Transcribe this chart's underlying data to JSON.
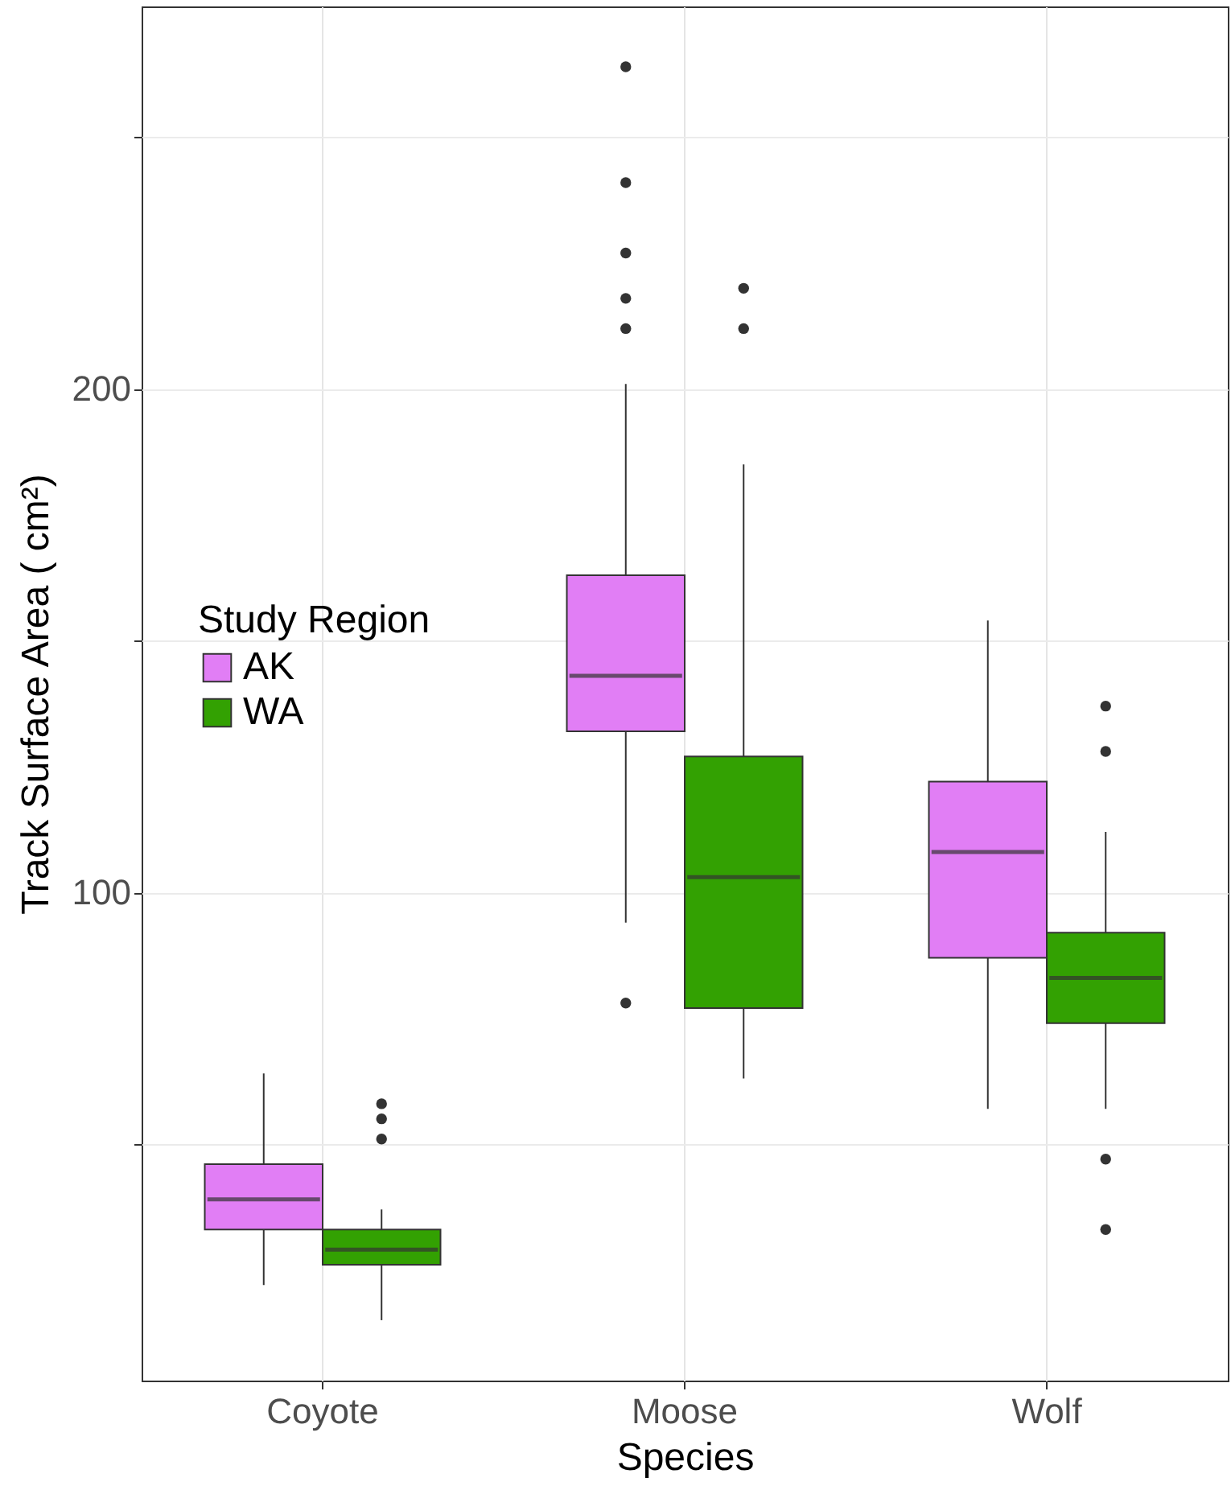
{
  "chart_data": {
    "type": "box",
    "xlabel": "Species",
    "ylabel": "Track Surface Area ( cm²)",
    "legend_title": "Study Region",
    "legend": "left",
    "grid": true,
    "categories": [
      "Coyote",
      "Moose",
      "Wolf"
    ],
    "ylim": [
      3,
      276
    ],
    "yticks": [
      {
        "value": 50,
        "label": null
      },
      100,
      {
        "value": 150,
        "label": null
      },
      200,
      {
        "value": 250,
        "label": null
      }
    ],
    "series": [
      {
        "name": "AK",
        "color": "#e17ef5",
        "boxes": [
          {
            "low": 22,
            "q1": 33,
            "median": 39,
            "q3": 46,
            "high": 64
          },
          {
            "low": 94,
            "q1": 132,
            "median": 143,
            "q3": 163,
            "high": 201,
            "outliers": [
              264,
              241,
              227,
              218,
              212,
              78
            ]
          },
          {
            "low": 57,
            "q1": 87,
            "median": 108,
            "q3": 122,
            "high": 154
          }
        ]
      },
      {
        "name": "WA",
        "color": "#33a102",
        "boxes": [
          {
            "low": 15,
            "q1": 26,
            "median": 29,
            "q3": 33,
            "high": 37,
            "outliers": [
              58,
              55,
              51
            ]
          },
          {
            "low": 63,
            "q1": 77,
            "median": 103,
            "q3": 127,
            "high": 185,
            "outliers": [
              220,
              212
            ]
          },
          {
            "low": 57,
            "q1": 74,
            "median": 83,
            "q3": 92,
            "high": 112,
            "outliers": [
              137,
              128,
              47,
              33
            ]
          }
        ]
      }
    ]
  }
}
